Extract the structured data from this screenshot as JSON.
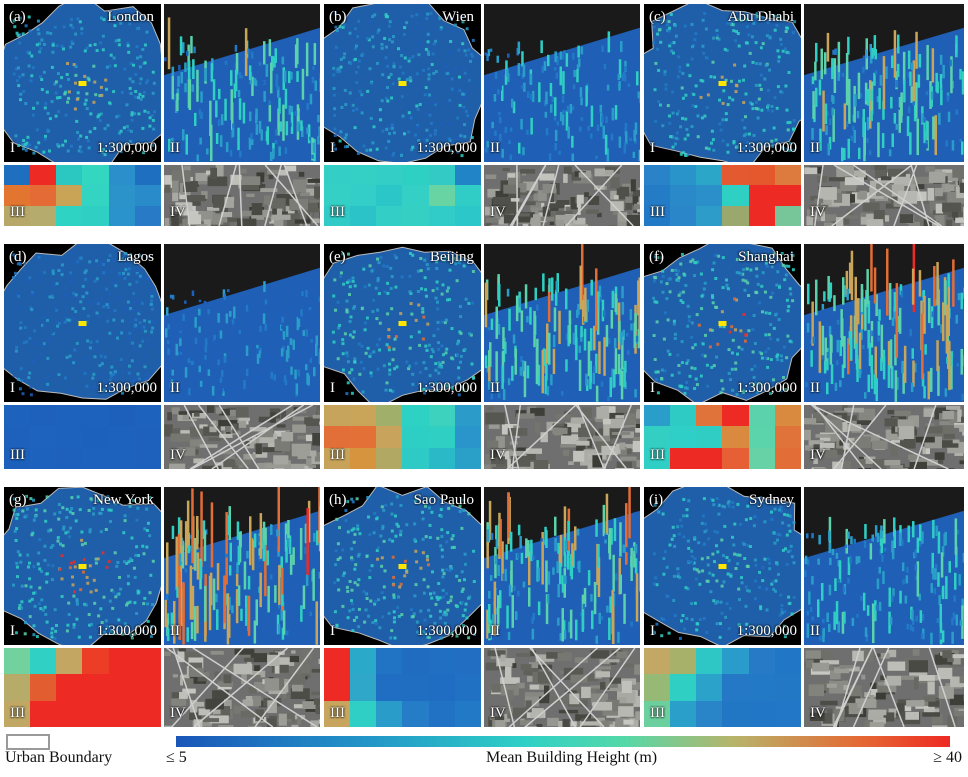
{
  "panels": [
    {
      "tag": "(a)",
      "city": "London",
      "scale": "1:300,000",
      "map_i": "I",
      "map_ii": "II",
      "map_iii": "III",
      "map_iv": "IV",
      "heatmap": [
        [
          "#1f6fc0",
          "#ee2a24",
          "#2ac8c0",
          "#33d6bf",
          "#2a8fca",
          "#1f6fc0"
        ],
        [
          "#e2752f",
          "#e46b35",
          "#c9a457",
          "#34d4c2",
          "#2b93c9",
          "#2a8bcb"
        ],
        [
          "#b7a86a",
          "#b5ab6c",
          "#2fd3c4",
          "#30cfc4",
          "#2a93cb",
          "#2879c6"
        ]
      ]
    },
    {
      "tag": "(b)",
      "city": "Wien",
      "scale": "1:300,000",
      "map_i": "I",
      "map_ii": "II",
      "map_iii": "III",
      "map_iv": "IV",
      "heatmap": [
        [
          "#33cfc6",
          "#34cfc5",
          "#33cec6",
          "#2fd0c4",
          "#33c9c5",
          "#2184c7"
        ],
        [
          "#34d0c5",
          "#32cec7",
          "#2bc6c8",
          "#34cfc5",
          "#68d4a4",
          "#30cdc6"
        ],
        [
          "#30cac7",
          "#2cc3c8",
          "#33cec6",
          "#35cfc4",
          "#31ccc7",
          "#2cc7c8"
        ]
      ]
    },
    {
      "tag": "(c)",
      "city": "Abu Dhabi",
      "scale": "1:300,000",
      "map_i": "I",
      "map_ii": "II",
      "map_iii": "III",
      "map_iv": "IV",
      "heatmap": [
        [
          "#2a83c9",
          "#2994ca",
          "#2ba6c8",
          "#e45a30",
          "#e5582e",
          "#dd7a3e"
        ],
        [
          "#247bc6",
          "#2a8ac9",
          "#2b90c9",
          "#2fd0c4",
          "#ee2a24",
          "#ee2a24"
        ],
        [
          "#2279c6",
          "#2b86c9",
          "#2e9cc8",
          "#9aa86e",
          "#ee2a24",
          "#77c69a"
        ]
      ]
    },
    {
      "tag": "(d)",
      "city": "Lagos",
      "scale": "1:300,000",
      "map_i": "I",
      "map_ii": "II",
      "map_iii": "III",
      "map_iv": "IV",
      "heatmap": [
        [
          "#1d62bd",
          "#1d61bc",
          "#1d63bd",
          "#1d62bd",
          "#1c60bc",
          "#1d62bd"
        ],
        [
          "#1d61bc",
          "#1e63bd",
          "#1d62bd",
          "#1c61bc",
          "#1d62bd",
          "#1d61bc"
        ],
        [
          "#1c60bc",
          "#1d62bd",
          "#1d61bc",
          "#1d62bd",
          "#1d63bd",
          "#1d61bc"
        ]
      ]
    },
    {
      "tag": "(e)",
      "city": "Beijing",
      "scale": "1:300,000",
      "map_i": "I",
      "map_ii": "II",
      "map_iii": "III",
      "map_iv": "IV",
      "heatmap": [
        [
          "#c7a45c",
          "#c9a55a",
          "#a0b06b",
          "#2ed2c4",
          "#3cd2bd",
          "#2b9cc9"
        ],
        [
          "#e26e38",
          "#e37036",
          "#c8a35b",
          "#2dcfc4",
          "#2fcfc4",
          "#2a95ca"
        ],
        [
          "#c7a35a",
          "#d7943f",
          "#b1a963",
          "#2dcac6",
          "#2ab9c7",
          "#2a9fc8"
        ]
      ]
    },
    {
      "tag": "(f)",
      "city": "Shanghai",
      "scale": "1:300,000",
      "map_i": "I",
      "map_ii": "II",
      "map_iii": "III",
      "map_iv": "IV",
      "heatmap": [
        [
          "#2a9ecb",
          "#2dcbc4",
          "#e0733a",
          "#ee2a24",
          "#5bd2ac",
          "#d98a3f"
        ],
        [
          "#33cfc3",
          "#2fcec6",
          "#30cdc5",
          "#d98a3f",
          "#5bd3ab",
          "#e0733a"
        ],
        [
          "#2fcfc5",
          "#ee2a24",
          "#ee2a24",
          "#e76035",
          "#67d2a5",
          "#e36d36"
        ]
      ]
    },
    {
      "tag": "(g)",
      "city": "New York",
      "scale": "1:300,000",
      "map_i": "I",
      "map_ii": "II",
      "map_iii": "III",
      "map_iv": "IV",
      "heatmap": [
        [
          "#72d29d",
          "#30d0c4",
          "#c3a662",
          "#ec3d27",
          "#ee2a24",
          "#ee2a24"
        ],
        [
          "#b7ab6a",
          "#e25e30",
          "#ee2a24",
          "#ee2a24",
          "#ee2a24",
          "#ee2a24"
        ],
        [
          "#c0a764",
          "#ee2a24",
          "#ee2a24",
          "#ee2a24",
          "#ee2a24",
          "#ee2a24"
        ]
      ]
    },
    {
      "tag": "(h)",
      "city": "Sao Paulo",
      "scale": "1:300,000",
      "map_i": "I",
      "map_ii": "II",
      "map_iii": "III",
      "map_iv": "IV",
      "heatmap": [
        [
          "#ee2a24",
          "#2aa9c8",
          "#2173c4",
          "#1f6cc1",
          "#206fc3",
          "#216ec3"
        ],
        [
          "#ee2a24",
          "#2fa7c8",
          "#1f6ec3",
          "#1f6ec2",
          "#1f6dc2",
          "#2070c3"
        ],
        [
          "#c7a55e",
          "#30cfc5",
          "#2a9cc9",
          "#247dc6",
          "#2172c4",
          "#2279c5"
        ]
      ]
    },
    {
      "tag": "(i)",
      "city": "Sydney",
      "scale": "1:300,000",
      "map_i": "I",
      "map_ii": "II",
      "map_iii": "III",
      "map_iv": "IV",
      "heatmap": [
        [
          "#c2a765",
          "#a7b16a",
          "#2ec7c6",
          "#2a9ccb",
          "#277ac6",
          "#2177c5"
        ],
        [
          "#96b976",
          "#2fcfc4",
          "#2ba2c9",
          "#2478c6",
          "#2279c5",
          "#2378c6"
        ],
        [
          "#6ccf9e",
          "#2a9fc9",
          "#2a84c8",
          "#2277c5",
          "#2176c5",
          "#2277c6"
        ]
      ]
    }
  ],
  "legend": {
    "boundary_label": "Urban Boundary",
    "colorbar_min": "≤ 5",
    "colorbar_max": "≥ 40",
    "colorbar_title": "Mean Building Height (m)"
  }
}
